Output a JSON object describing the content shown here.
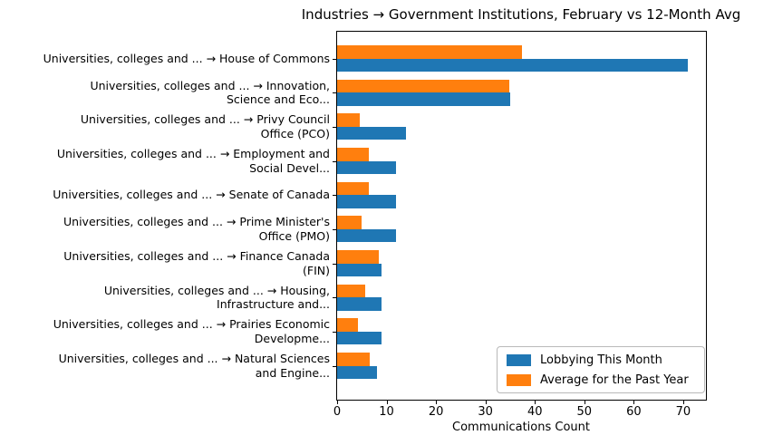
{
  "chart_data": {
    "type": "bar",
    "orientation": "horizontal",
    "title": "Industries → Government Institutions, February vs 12-Month Avg",
    "xlabel": "Communications Count",
    "ylabel": "",
    "xlim": [
      0,
      74.6
    ],
    "xticks": [
      0,
      10,
      20,
      30,
      40,
      50,
      60,
      70
    ],
    "grid": false,
    "legend_position": "lower right",
    "background_color": "#ffffff",
    "categories": [
      "Universities, colleges and ... → House of Commons",
      "Universities, colleges and ... → Innovation, Science and Eco...",
      "Universities, colleges and ... → Privy Council Office (PCO)",
      "Universities, colleges and ... → Employment and Social Devel...",
      "Universities, colleges and ... → Senate of Canada",
      "Universities, colleges and ... → Prime Minister's Office (PMO)",
      "Universities, colleges and ... → Finance Canada (FIN)",
      "Universities, colleges and ... → Housing, Infrastructure and...",
      "Universities, colleges and ... → Prairies Economic Developme...",
      "Universities, colleges and ... → Natural Sciences and Engine..."
    ],
    "category_label_lines": [
      [
        "Universities, colleges and ... → House of Commons"
      ],
      [
        "Universities, colleges and ... → Innovation,",
        "Science and Eco..."
      ],
      [
        "Universities, colleges and ... → Privy Council",
        "Office (PCO)"
      ],
      [
        "Universities, colleges and ... → Employment and",
        "Social Devel..."
      ],
      [
        "Universities, colleges and ... → Senate of Canada"
      ],
      [
        "Universities, colleges and ... → Prime Minister's",
        "Office (PMO)"
      ],
      [
        "Universities, colleges and ... → Finance Canada",
        "(FIN)"
      ],
      [
        "Universities, colleges and ... → Housing,",
        "Infrastructure and..."
      ],
      [
        "Universities, colleges and ... → Prairies Economic",
        "Developme..."
      ],
      [
        "Universities, colleges and ... → Natural Sciences",
        "and Engine..."
      ]
    ],
    "series": [
      {
        "name": "Lobbying This Month",
        "color": "#1f77b4",
        "values": [
          71,
          35,
          14,
          12,
          12,
          12,
          9,
          9,
          9,
          8
        ]
      },
      {
        "name": "Average for the Past Year",
        "color": "#ff7f0e",
        "values": [
          37.3,
          34.8,
          4.5,
          6.5,
          6.4,
          4.9,
          8.4,
          5.7,
          4.2,
          6.6
        ]
      }
    ]
  }
}
